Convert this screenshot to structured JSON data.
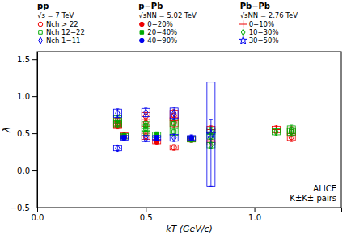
{
  "chart_data": {
    "type": "scatter",
    "x_label": "kT (GeV/c)",
    "y_label": "λ",
    "xlim": [
      0,
      1.4
    ],
    "ylim": [
      -0.5,
      1.6
    ],
    "xticks": [
      {
        "value": 0,
        "label": "0.0"
      },
      0.5,
      {
        "value": 1.0,
        "label": "1.0"
      }
    ],
    "yticks": [
      {
        "value": -0.5,
        "label": "−0.5"
      },
      {
        "value": 0,
        "label": "0.0"
      },
      0.5,
      {
        "value": 1.0,
        "label": "1.0"
      },
      1.5
    ],
    "grid": false,
    "legend": "top",
    "annotations": [
      "ALICE",
      "K±K± pairs"
    ],
    "groups": [
      {
        "name": "pp",
        "subtitle": "√s = 7 TeV",
        "series": [
          {
            "name": "Nch > 22",
            "color": "#ee0000",
            "marker": "circle-open",
            "x": [
              0.37,
              0.37,
              0.37,
              0.5,
              0.5,
              0.5,
              0.63,
              0.63,
              0.63,
              1.17,
              1.17
            ],
            "values": [
              0.65,
              0.62,
              0.6,
              0.73,
              0.64,
              0.46,
              0.74,
              0.65,
              0.31,
              0.52,
              0.45
            ],
            "error_minus": [
              0.05,
              0.05,
              0.04,
              0.05,
              0.05,
              0.04,
              0.08,
              0.07,
              0.04,
              0.07,
              0.06
            ],
            "error_plus": [
              0.05,
              0.05,
              0.04,
              0.05,
              0.05,
              0.04,
              0.08,
              0.07,
              0.04,
              0.07,
              0.06
            ],
            "box_heights": [
              0.1,
              0.08,
              0.07,
              0.1,
              0.09,
              0.08,
              0.14,
              0.12,
              0.07,
              0.11,
              0.09
            ]
          },
          {
            "name": "Nch 12−22",
            "color": "#00aa00",
            "marker": "square-open",
            "x": [
              0.37,
              0.37,
              0.5,
              0.5,
              0.5,
              0.63,
              0.63,
              1.17,
              1.17
            ],
            "values": [
              0.69,
              0.63,
              0.61,
              0.57,
              0.5,
              0.63,
              0.52,
              0.55,
              0.52
            ],
            "error_minus": [
              0.05,
              0.05,
              0.05,
              0.05,
              0.04,
              0.06,
              0.05,
              0.06,
              0.06
            ],
            "error_plus": [
              0.05,
              0.05,
              0.05,
              0.05,
              0.04,
              0.06,
              0.05,
              0.06,
              0.06
            ],
            "box_heights": [
              0.09,
              0.08,
              0.09,
              0.08,
              0.07,
              0.11,
              0.09,
              0.1,
              0.09
            ]
          },
          {
            "name": "Nch 1−11",
            "color": "#0000ee",
            "marker": "diamond-open",
            "x": [
              0.37,
              0.37,
              0.5,
              0.5,
              0.63,
              0.63
            ],
            "values": [
              0.77,
              0.3,
              0.78,
              0.43,
              0.77,
              0.44
            ],
            "error_minus": [
              0.06,
              0.04,
              0.06,
              0.04,
              0.08,
              0.05
            ],
            "error_plus": [
              0.06,
              0.04,
              0.06,
              0.04,
              0.08,
              0.05
            ],
            "box_heights": [
              0.11,
              0.07,
              0.11,
              0.08,
              0.14,
              0.09
            ]
          }
        ]
      },
      {
        "name": "p−Pb",
        "subtitle": "√sNN = 5.02 TeV",
        "series": [
          {
            "name": "0−20%",
            "color": "#ee0000",
            "marker": "circle",
            "x": [
              0.4,
              0.55,
              0.71
            ],
            "values": [
              0.47,
              0.39,
              0.42
            ],
            "error_minus": [
              0.04,
              0.04,
              0.04
            ],
            "error_plus": [
              0.04,
              0.04,
              0.04
            ],
            "box_heights": [
              0.07,
              0.06,
              0.07
            ]
          },
          {
            "name": "20−40%",
            "color": "#00aa00",
            "marker": "square",
            "x": [
              0.4,
              0.55,
              0.71
            ],
            "values": [
              0.46,
              0.48,
              0.42
            ],
            "error_minus": [
              0.04,
              0.04,
              0.04
            ],
            "error_plus": [
              0.04,
              0.04,
              0.04
            ],
            "box_heights": [
              0.07,
              0.07,
              0.07
            ]
          },
          {
            "name": "40−90%",
            "color": "#0000ee",
            "marker": "circle",
            "x": [
              0.4,
              0.55,
              0.71
            ],
            "values": [
              0.44,
              0.44,
              0.44
            ],
            "error_minus": [
              0.03,
              0.03,
              0.04
            ],
            "error_plus": [
              0.03,
              0.03,
              0.04
            ],
            "box_heights": [
              0.06,
              0.06,
              0.06
            ]
          }
        ]
      },
      {
        "name": "Pb−Pb",
        "subtitle": "√sNN = 2.76 TeV",
        "series": [
          {
            "name": "0−10%",
            "color": "#ee0000",
            "marker": "plus",
            "x": [
              0.8,
              0.8,
              1.1
            ],
            "values": [
              0.55,
              0.38,
              0.55
            ],
            "error_minus": [
              0.05,
              0.04,
              0.05
            ],
            "error_plus": [
              0.05,
              0.04,
              0.05
            ],
            "box_heights": [
              0.09,
              0.07,
              0.09
            ]
          },
          {
            "name": "10−30%",
            "color": "#00aa00",
            "marker": "diamond-open",
            "x": [
              0.8,
              0.8,
              0.8,
              1.1
            ],
            "values": [
              0.53,
              0.46,
              0.34,
              0.52
            ],
            "error_minus": [
              0.05,
              0.04,
              0.04,
              0.05
            ],
            "error_plus": [
              0.05,
              0.04,
              0.04,
              0.05
            ],
            "box_heights": [
              0.09,
              0.07,
              0.07,
              0.08
            ]
          },
          {
            "name": "30−50%",
            "color": "#0000ee",
            "marker": "star-open",
            "x": [
              0.8
            ],
            "values": [
              0.49
            ],
            "error_minus": [
              0.7
            ],
            "error_plus": [
              0.2
            ],
            "box_heights": [
              1.4
            ]
          }
        ]
      }
    ]
  }
}
